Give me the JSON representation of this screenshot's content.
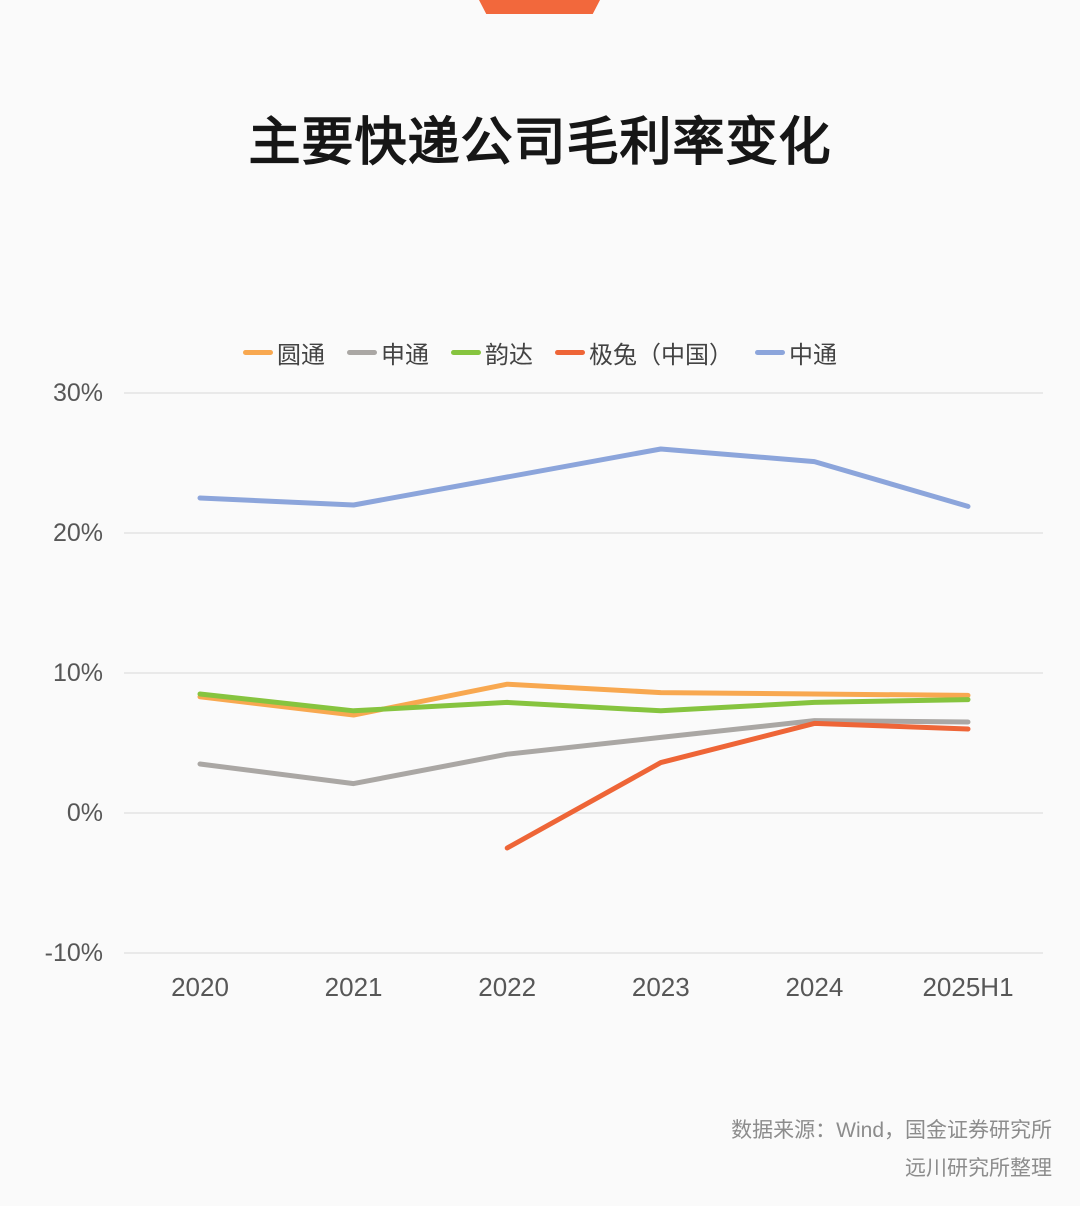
{
  "page": {
    "background": "#FAFAFA",
    "banner_color": "#F2683C"
  },
  "title": "主要快递公司毛利率变化",
  "chart_data": {
    "type": "line",
    "title": "主要快递公司毛利率变化",
    "categories": [
      "2020",
      "2021",
      "2022",
      "2023",
      "2024",
      "2025H1"
    ],
    "xlabel": "",
    "ylabel": "",
    "unit": "%",
    "ylim": [
      -10,
      30
    ],
    "y_ticks": [
      "30%",
      "20%",
      "10%",
      "0%",
      "-10%"
    ],
    "y_tick_values": [
      30,
      20,
      10,
      0,
      -10
    ],
    "grid": "horizontal",
    "grid_color": "#E9E9E9",
    "legend_position": "top",
    "line_width": 5,
    "series": [
      {
        "key": "yuantong",
        "name": "圆通",
        "color": "#F8A850",
        "values": [
          8.3,
          7.0,
          9.2,
          8.6,
          8.5,
          8.4
        ]
      },
      {
        "key": "shentong",
        "name": "申通",
        "color": "#AAA7A4",
        "values": [
          3.5,
          2.1,
          4.2,
          5.4,
          6.6,
          6.5
        ]
      },
      {
        "key": "yunda",
        "name": "韵达",
        "color": "#86C43F",
        "values": [
          8.5,
          7.3,
          7.9,
          7.3,
          7.9,
          8.1
        ]
      },
      {
        "key": "jitu",
        "name": "极兔（中国）",
        "color": "#EE6537",
        "values": [
          null,
          null,
          -2.5,
          3.6,
          6.4,
          6.0
        ]
      },
      {
        "key": "zhongtong",
        "name": "中通",
        "color": "#8CA5DB",
        "values": [
          22.5,
          22.0,
          24.0,
          26.0,
          25.1,
          21.9
        ]
      }
    ]
  },
  "footer": {
    "line1": "数据来源：Wind，国金证券研究所",
    "line2": "远川研究所整理"
  }
}
